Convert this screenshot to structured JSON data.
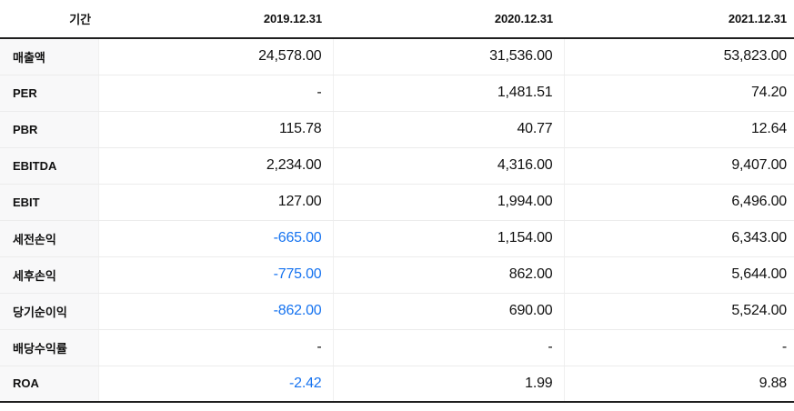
{
  "table": {
    "header": {
      "period_label": "기간",
      "columns": [
        "2019.12.31",
        "2020.12.31",
        "2021.12.31"
      ]
    },
    "rows": [
      {
        "label": "매출액",
        "values": [
          "24,578.00",
          "31,536.00",
          "53,823.00"
        ],
        "negative": [
          false,
          false,
          false
        ]
      },
      {
        "label": "PER",
        "values": [
          "-",
          "1,481.51",
          "74.20"
        ],
        "negative": [
          false,
          false,
          false
        ]
      },
      {
        "label": "PBR",
        "values": [
          "115.78",
          "40.77",
          "12.64"
        ],
        "negative": [
          false,
          false,
          false
        ]
      },
      {
        "label": "EBITDA",
        "values": [
          "2,234.00",
          "4,316.00",
          "9,407.00"
        ],
        "negative": [
          false,
          false,
          false
        ]
      },
      {
        "label": "EBIT",
        "values": [
          "127.00",
          "1,994.00",
          "6,496.00"
        ],
        "negative": [
          false,
          false,
          false
        ]
      },
      {
        "label": "세전손익",
        "values": [
          "-665.00",
          "1,154.00",
          "6,343.00"
        ],
        "negative": [
          true,
          false,
          false
        ]
      },
      {
        "label": "세후손익",
        "values": [
          "-775.00",
          "862.00",
          "5,644.00"
        ],
        "negative": [
          true,
          false,
          false
        ]
      },
      {
        "label": "당기순이익",
        "values": [
          "-862.00",
          "690.00",
          "5,524.00"
        ],
        "negative": [
          true,
          false,
          false
        ]
      },
      {
        "label": "배당수익률",
        "values": [
          "-",
          "-",
          "-"
        ],
        "negative": [
          false,
          false,
          false
        ]
      },
      {
        "label": "ROA",
        "values": [
          "-2.42",
          "1.99",
          "9.88"
        ],
        "negative": [
          true,
          false,
          false
        ]
      }
    ],
    "colors": {
      "negative_text": "#1673f0",
      "text": "#111111",
      "label_column_bg": "#f8f8f9",
      "row_border": "#ececec",
      "column_border": "#f0f0f0",
      "heavy_border": "#1f1f1f"
    }
  },
  "chart_data": {
    "type": "table",
    "title": "",
    "columns": [
      "기간",
      "2019.12.31",
      "2020.12.31",
      "2021.12.31"
    ],
    "rows": [
      [
        "매출액",
        24578.0,
        31536.0,
        53823.0
      ],
      [
        "PER",
        null,
        1481.51,
        74.2
      ],
      [
        "PBR",
        115.78,
        40.77,
        12.64
      ],
      [
        "EBITDA",
        2234.0,
        4316.0,
        9407.0
      ],
      [
        "EBIT",
        127.0,
        1994.0,
        6496.0
      ],
      [
        "세전손익",
        -665.0,
        1154.0,
        6343.0
      ],
      [
        "세후손익",
        -775.0,
        862.0,
        5644.0
      ],
      [
        "당기순이익",
        -862.0,
        690.0,
        5524.0
      ],
      [
        "배당수익률",
        null,
        null,
        null
      ],
      [
        "ROA",
        -2.42,
        1.99,
        9.88
      ]
    ],
    "layout": {
      "value_alignment": "right",
      "negative_values_color": "#1673f0",
      "null_display": "-"
    }
  }
}
